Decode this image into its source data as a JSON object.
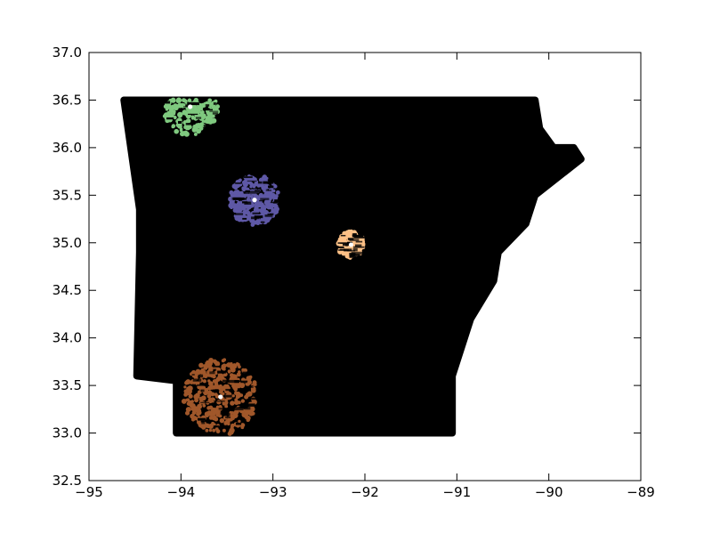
{
  "chart_data": {
    "type": "scatter",
    "title": "",
    "xlabel": "",
    "ylabel": "",
    "xlim": [
      -95,
      -89
    ],
    "ylim": [
      32.5,
      37.0
    ],
    "grid": false,
    "x_ticks": [
      -95,
      -94,
      -93,
      -92,
      -91,
      -90,
      -89
    ],
    "y_ticks": [
      32.5,
      33.0,
      33.5,
      34.0,
      34.5,
      35.0,
      35.5,
      36.0,
      36.5,
      37.0
    ],
    "x_tick_labels": [
      "−95",
      "−94",
      "−93",
      "−92",
      "−91",
      "−90",
      "−89"
    ],
    "y_tick_labels": [
      "32.5",
      "33.0",
      "33.5",
      "34.0",
      "34.5",
      "35.0",
      "35.5",
      "36.0",
      "36.5",
      "37.0"
    ],
    "background_points": {
      "color": "#000000",
      "description_shape": [
        [
          -94.62,
          36.5
        ],
        [
          -90.15,
          36.5
        ],
        [
          -90.1,
          36.2
        ],
        [
          -89.95,
          36.0
        ],
        [
          -89.73,
          36.0
        ],
        [
          -89.65,
          35.88
        ],
        [
          -90.15,
          35.5
        ],
        [
          -90.25,
          35.2
        ],
        [
          -90.55,
          34.9
        ],
        [
          -90.6,
          34.6
        ],
        [
          -90.85,
          34.2
        ],
        [
          -91.05,
          33.6
        ],
        [
          -91.05,
          33.0
        ],
        [
          -94.05,
          33.0
        ],
        [
          -94.05,
          33.55
        ],
        [
          -94.48,
          33.6
        ],
        [
          -94.45,
          34.9
        ],
        [
          -94.45,
          35.35
        ],
        [
          -94.62,
          36.5
        ]
      ]
    },
    "clusters": [
      {
        "center": [
          -93.9,
          36.43
        ],
        "radius_x": 0.3,
        "radius_y": 0.3,
        "clip_ymax": 36.5,
        "color": "#7fc97f",
        "center_color": "#ffffff"
      },
      {
        "center": [
          -93.2,
          35.45
        ],
        "radius_x": 0.27,
        "radius_y": 0.27,
        "color": "#5e58a6",
        "center_color": "#ffffff"
      },
      {
        "center": [
          -92.15,
          34.98
        ],
        "radius_x": 0.14,
        "radius_y": 0.14,
        "color": "#fdc086",
        "center_color": "#ffffff"
      },
      {
        "center": [
          -93.57,
          33.38
        ],
        "radius_x": 0.4,
        "radius_y": 0.4,
        "color": "#a0572a",
        "center_color": "#ffffff"
      }
    ]
  }
}
